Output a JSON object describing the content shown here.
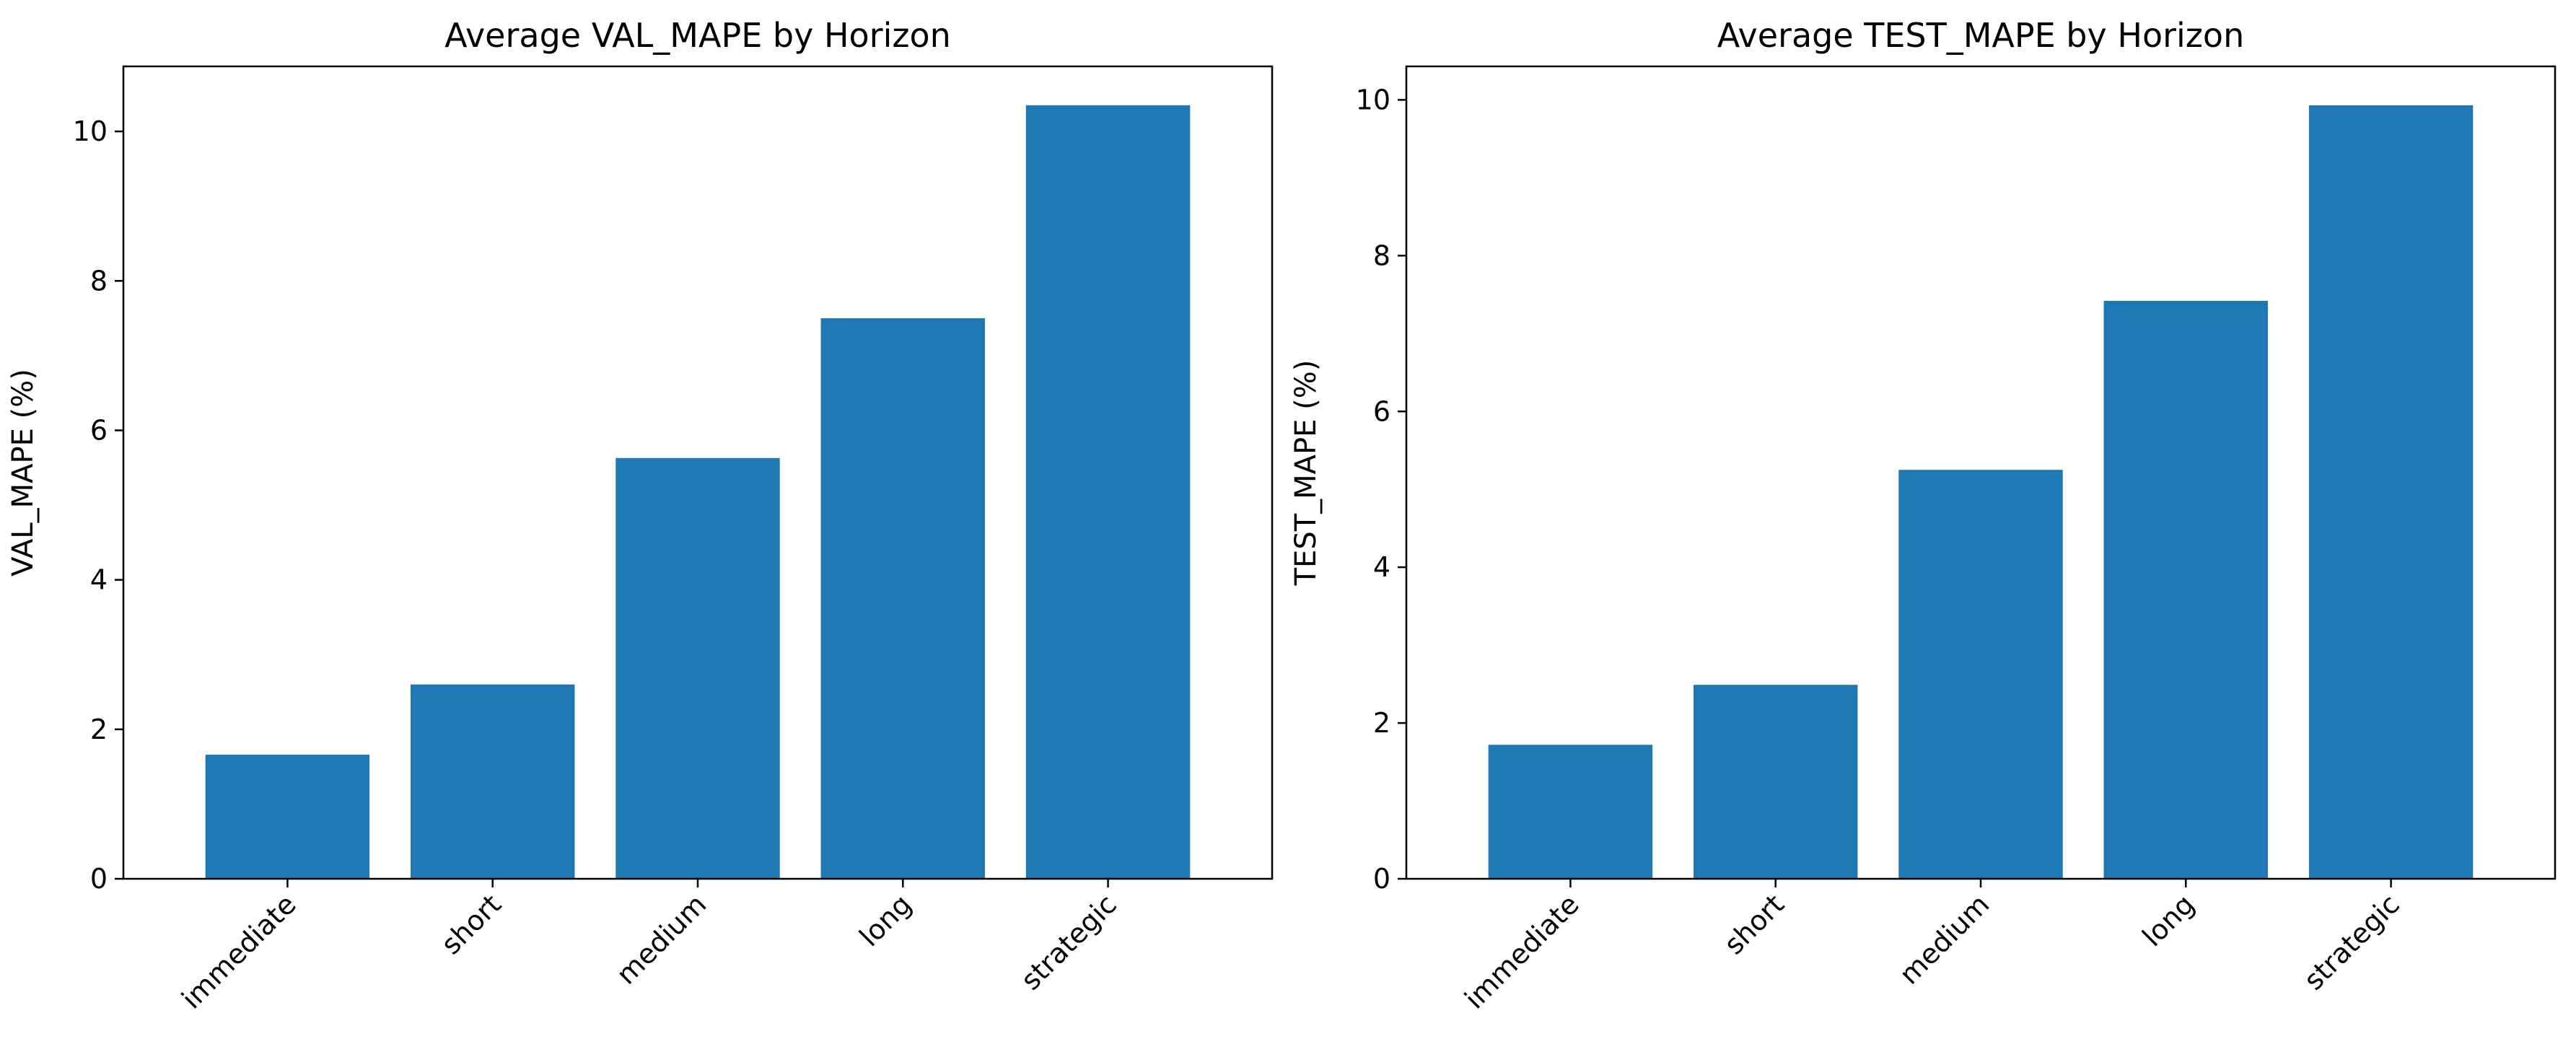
{
  "colors": {
    "bar": "#1f77b4",
    "axis": "#000000",
    "background": "#ffffff"
  },
  "chart_data": [
    {
      "type": "bar",
      "title": "Average VAL_MAPE by Horizon",
      "xlabel": "",
      "ylabel": "VAL_MAPE (%)",
      "categories": [
        "immediate",
        "short",
        "medium",
        "long",
        "strategic"
      ],
      "values": [
        1.66,
        2.6,
        5.63,
        7.5,
        10.35
      ],
      "ylim": [
        0,
        10.87
      ],
      "yticks": [
        0,
        2,
        4,
        6,
        8,
        10
      ],
      "ytick_labels": [
        "0",
        "2",
        "4",
        "6",
        "8",
        "10"
      ],
      "grid": false,
      "legend": "none"
    },
    {
      "type": "bar",
      "title": "Average TEST_MAPE by Horizon",
      "xlabel": "",
      "ylabel": "TEST_MAPE (%)",
      "categories": [
        "immediate",
        "short",
        "medium",
        "long",
        "strategic"
      ],
      "values": [
        1.72,
        2.49,
        5.25,
        7.42,
        9.93
      ],
      "ylim": [
        0,
        10.43
      ],
      "yticks": [
        0,
        2,
        4,
        6,
        8,
        10
      ],
      "ytick_labels": [
        "0",
        "2",
        "4",
        "6",
        "8",
        "10"
      ],
      "grid": false,
      "legend": "none"
    }
  ]
}
